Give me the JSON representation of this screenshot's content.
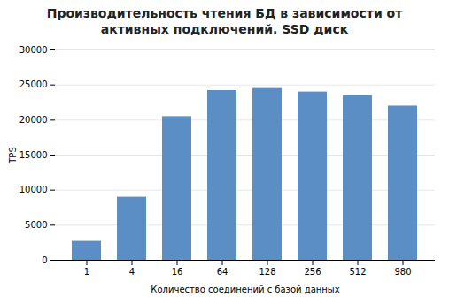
{
  "chart_data": {
    "type": "bar",
    "title": "Производительность чтения БД в зависимости от\nактивных подключений. SSD диск",
    "xlabel": "Количество соединений с базой данных",
    "ylabel": "TPS",
    "categories": [
      "1",
      "4",
      "16",
      "64",
      "128",
      "256",
      "512",
      "980"
    ],
    "values": [
      2700,
      9000,
      20500,
      24200,
      24500,
      24000,
      23500,
      22000
    ],
    "color": "#5b8ec4",
    "ylim": [
      0,
      30000
    ],
    "yticks": [
      0,
      5000,
      10000,
      15000,
      20000,
      25000,
      30000
    ],
    "grid": true
  }
}
